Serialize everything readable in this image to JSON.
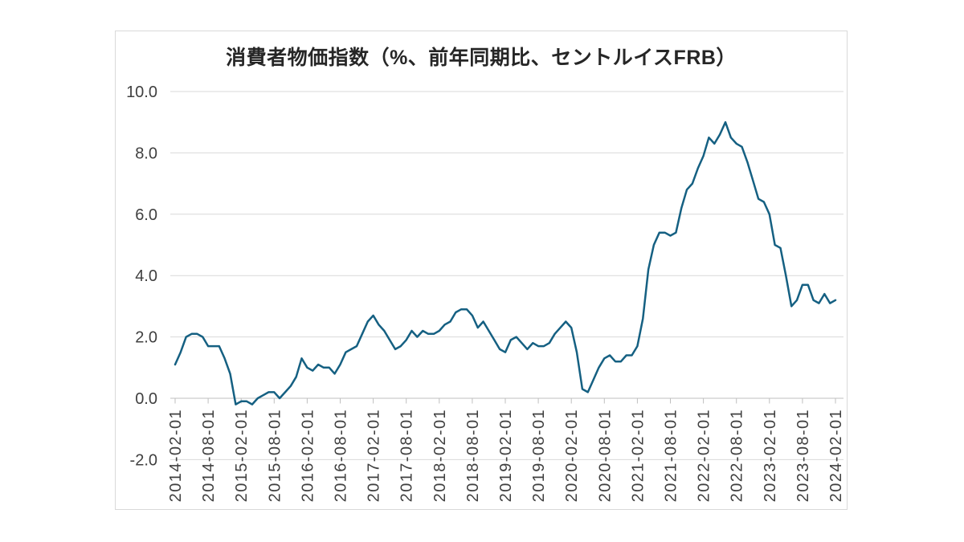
{
  "chart_data": {
    "type": "line",
    "title": "消費者物価指数（%、前年同期比、セントルイスFRB）",
    "xlabel": "",
    "ylabel": "",
    "ylim": [
      -2.0,
      10.0
    ],
    "grid": true,
    "legend": false,
    "line_color": "#156082",
    "gridline_color": "#d9d9d9",
    "axis_color": "#bfbfbf",
    "label_color": "#404040",
    "title_color": "#262626",
    "panel_border_color": "#d9d9d9",
    "y_tick_labels": [
      "10.0",
      "8.0",
      "6.0",
      "4.0",
      "2.0",
      "0.0",
      "-2.0"
    ],
    "y_tick_values": [
      10,
      8,
      6,
      4,
      2,
      0,
      -2
    ],
    "x_tick_labels": [
      "2014-02-01",
      "2014-08-01",
      "2015-02-01",
      "2015-08-01",
      "2016-02-01",
      "2016-08-01",
      "2017-02-01",
      "2017-08-01",
      "2018-02-01",
      "2018-08-01",
      "2019-02-01",
      "2019-08-01",
      "2020-02-01",
      "2020-08-01",
      "2021-02-01",
      "2021-08-01",
      "2022-02-01",
      "2022-08-01",
      "2023-02-01",
      "2023-08-01",
      "2024-02-01"
    ],
    "x_months": [
      "2014-02",
      "2014-03",
      "2014-04",
      "2014-05",
      "2014-06",
      "2014-07",
      "2014-08",
      "2014-09",
      "2014-10",
      "2014-11",
      "2014-12",
      "2015-01",
      "2015-02",
      "2015-03",
      "2015-04",
      "2015-05",
      "2015-06",
      "2015-07",
      "2015-08",
      "2015-09",
      "2015-10",
      "2015-11",
      "2015-12",
      "2016-01",
      "2016-02",
      "2016-03",
      "2016-04",
      "2016-05",
      "2016-06",
      "2016-07",
      "2016-08",
      "2016-09",
      "2016-10",
      "2016-11",
      "2016-12",
      "2017-01",
      "2017-02",
      "2017-03",
      "2017-04",
      "2017-05",
      "2017-06",
      "2017-07",
      "2017-08",
      "2017-09",
      "2017-10",
      "2017-11",
      "2017-12",
      "2018-01",
      "2018-02",
      "2018-03",
      "2018-04",
      "2018-05",
      "2018-06",
      "2018-07",
      "2018-08",
      "2018-09",
      "2018-10",
      "2018-11",
      "2018-12",
      "2019-01",
      "2019-02",
      "2019-03",
      "2019-04",
      "2019-05",
      "2019-06",
      "2019-07",
      "2019-08",
      "2019-09",
      "2019-10",
      "2019-11",
      "2019-12",
      "2020-01",
      "2020-02",
      "2020-03",
      "2020-04",
      "2020-05",
      "2020-06",
      "2020-07",
      "2020-08",
      "2020-09",
      "2020-10",
      "2020-11",
      "2020-12",
      "2021-01",
      "2021-02",
      "2021-03",
      "2021-04",
      "2021-05",
      "2021-06",
      "2021-07",
      "2021-08",
      "2021-09",
      "2021-10",
      "2021-11",
      "2021-12",
      "2022-01",
      "2022-02",
      "2022-03",
      "2022-04",
      "2022-05",
      "2022-06",
      "2022-07",
      "2022-08",
      "2022-09",
      "2022-10",
      "2022-11",
      "2022-12",
      "2023-01",
      "2023-02",
      "2023-03",
      "2023-04",
      "2023-05",
      "2023-06",
      "2023-07",
      "2023-08",
      "2023-09",
      "2023-10",
      "2023-11",
      "2023-12",
      "2024-01",
      "2024-02"
    ],
    "values": [
      1.1,
      1.5,
      2.0,
      2.1,
      2.1,
      2.0,
      1.7,
      1.7,
      1.7,
      1.3,
      0.8,
      -0.2,
      -0.1,
      -0.1,
      -0.2,
      0.0,
      0.1,
      0.2,
      0.2,
      0.0,
      0.2,
      0.4,
      0.7,
      1.3,
      1.0,
      0.9,
      1.1,
      1.0,
      1.0,
      0.8,
      1.1,
      1.5,
      1.6,
      1.7,
      2.1,
      2.5,
      2.7,
      2.4,
      2.2,
      1.9,
      1.6,
      1.7,
      1.9,
      2.2,
      2.0,
      2.2,
      2.1,
      2.1,
      2.2,
      2.4,
      2.5,
      2.8,
      2.9,
      2.9,
      2.7,
      2.3,
      2.5,
      2.2,
      1.9,
      1.6,
      1.5,
      1.9,
      2.0,
      1.8,
      1.6,
      1.8,
      1.7,
      1.7,
      1.8,
      2.1,
      2.3,
      2.5,
      2.3,
      1.5,
      0.3,
      0.2,
      0.6,
      1.0,
      1.3,
      1.4,
      1.2,
      1.2,
      1.4,
      1.4,
      1.7,
      2.6,
      4.2,
      5.0,
      5.4,
      5.4,
      5.3,
      5.4,
      6.2,
      6.8,
      7.0,
      7.5,
      7.9,
      8.5,
      8.3,
      8.6,
      9.0,
      8.5,
      8.3,
      8.2,
      7.7,
      7.1,
      6.5,
      6.4,
      6.0,
      5.0,
      4.9,
      4.0,
      3.0,
      3.2,
      3.7,
      3.7,
      3.2,
      3.1,
      3.4,
      3.1,
      3.2
    ]
  }
}
